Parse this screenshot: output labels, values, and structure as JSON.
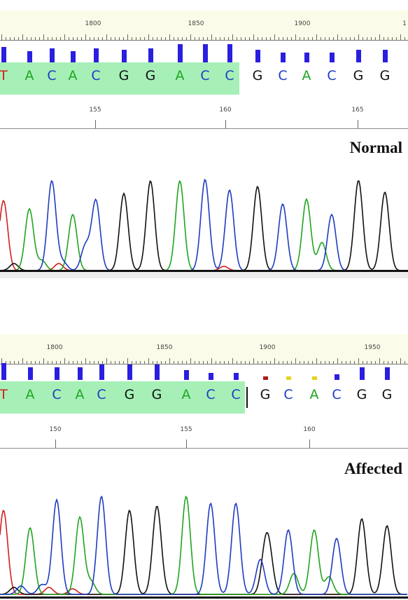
{
  "panels": [
    {
      "id": "normal",
      "label": "Normal",
      "ruler_labels": [
        "1800",
        "1850",
        "1900",
        "1"
      ],
      "bases": [
        "T",
        "A",
        "C",
        "A",
        "C",
        "G",
        "G",
        "A",
        "C",
        "C",
        "G",
        "C",
        "A",
        "C",
        "G",
        "G"
      ],
      "quality": [
        "high",
        "high",
        "high",
        "high",
        "high",
        "high",
        "high",
        "high",
        "high",
        "high",
        "high",
        "high",
        "high",
        "high",
        "high",
        "high"
      ],
      "highlighted_bases": 10,
      "position_labels": [
        "155",
        "160",
        "165"
      ],
      "has_cursor": false
    },
    {
      "id": "affected",
      "label": "Affected",
      "ruler_labels": [
        "1800",
        "1850",
        "1900",
        "1950"
      ],
      "bases": [
        "T",
        "A",
        "C",
        "A",
        "C",
        "G",
        "G",
        "A",
        "C",
        "C",
        "G",
        "C",
        "A",
        "C",
        "G",
        "G"
      ],
      "quality": [
        "high",
        "high",
        "high",
        "high",
        "high",
        "high",
        "high",
        "high",
        "high",
        "high",
        "low",
        "low",
        "low",
        "high",
        "high",
        "high"
      ],
      "highlighted_bases": 10,
      "position_labels": [
        "150",
        "155",
        "160"
      ],
      "has_cursor": true
    }
  ],
  "colors": {
    "A": "#1fa51f",
    "C": "#1f3cc0",
    "G": "#111111",
    "T": "#d21f1f",
    "highlight": "#a6f0b8",
    "quality_bar": "#2a1ee0",
    "quality_low_1": "#b01a1a",
    "quality_low_2": "#e6d21a"
  }
}
